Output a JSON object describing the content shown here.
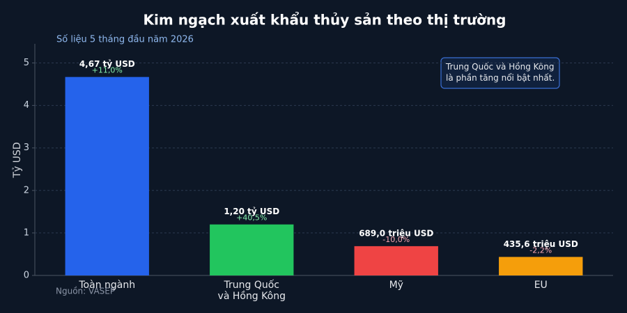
{
  "chart_data": {
    "type": "bar",
    "title": "Kim ngạch xuất khẩu thủy sản theo thị trường",
    "subtitle": "Số liệu 5 tháng đầu năm 2026",
    "y_label": "Tỷ USD",
    "categories": [
      "Toàn ngành",
      "Trung Quốc\nvà Hồng Kông",
      "Mỹ",
      "EU"
    ],
    "values": [
      4.67,
      1.2,
      0.689,
      0.4356
    ],
    "value_labels": [
      "4,67 tỷ USD",
      "1,20 tỷ USD",
      "689,0 triệu USD",
      "435,6 triệu USD"
    ],
    "growth_labels": [
      "+11,0%",
      "+40,5%",
      "-10,0%",
      "-2,2%"
    ],
    "colors": [
      "#2563eb",
      "#22c55e",
      "#ef4444",
      "#f59e0b"
    ],
    "ylim": [
      0,
      5.45
    ],
    "yticks": [
      0,
      1,
      2,
      3,
      4,
      5
    ],
    "grid": true,
    "annotation": "Trung Quốc và Hồng Kông\nlà phần tăng nổi bật nhất.",
    "source": "Nguồn: VASEP"
  }
}
